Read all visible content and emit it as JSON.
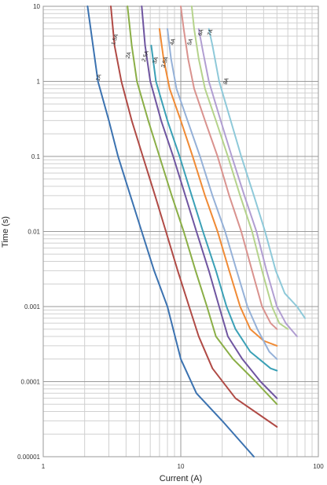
{
  "chart_data": {
    "type": "line",
    "x_scale": "log",
    "y_scale": "log",
    "xlim": [
      1,
      100
    ],
    "ylim": [
      1e-05,
      10
    ],
    "xlabel": "Current (A)",
    "ylabel": "Time (s)",
    "grid": true,
    "legend": "none",
    "x_ticks": [
      {
        "value": 1,
        "label": "1"
      },
      {
        "value": 10,
        "label": "10"
      },
      {
        "value": 100,
        "label": "100"
      }
    ],
    "y_ticks": [
      {
        "value": 10,
        "label": "10"
      },
      {
        "value": 1,
        "label": "1"
      },
      {
        "value": 0.1,
        "label": "0.1"
      },
      {
        "value": 0.01,
        "label": "0.01"
      },
      {
        "value": 0.001,
        "label": "0.001"
      },
      {
        "value": 0.0001,
        "label": "0.0001"
      },
      {
        "value": 1e-05,
        "label": "0.00001"
      }
    ],
    "series": [
      {
        "name": "1A",
        "color": "#3b72b0",
        "points": [
          [
            2.1,
            10
          ],
          [
            2.3,
            3
          ],
          [
            2.5,
            1
          ],
          [
            3,
            0.3
          ],
          [
            3.5,
            0.1
          ],
          [
            4.3,
            0.03
          ],
          [
            5.2,
            0.01
          ],
          [
            6.4,
            0.003
          ],
          [
            8,
            0.001
          ],
          [
            10,
            0.0002
          ],
          [
            13,
            7e-05
          ],
          [
            20,
            3e-05
          ],
          [
            34,
            1e-05
          ]
        ]
      },
      {
        "name": "1.5A",
        "color": "#b04a45",
        "points": [
          [
            3.1,
            10
          ],
          [
            3.3,
            3
          ],
          [
            3.7,
            1
          ],
          [
            4.4,
            0.3
          ],
          [
            5.3,
            0.1
          ],
          [
            6.5,
            0.03
          ],
          [
            7.8,
            0.01
          ],
          [
            9.5,
            0.003
          ],
          [
            11.5,
            0.001
          ],
          [
            13.5,
            0.0004
          ],
          [
            17,
            0.00015
          ],
          [
            25,
            6e-05
          ],
          [
            50,
            2.5e-05
          ]
        ]
      },
      {
        "name": "2A",
        "color": "#8aae46",
        "points": [
          [
            4.1,
            10
          ],
          [
            4.4,
            3
          ],
          [
            4.8,
            1
          ],
          [
            5.8,
            0.3
          ],
          [
            7,
            0.1
          ],
          [
            8.6,
            0.03
          ],
          [
            10.5,
            0.01
          ],
          [
            12.8,
            0.003
          ],
          [
            15.5,
            0.001
          ],
          [
            18,
            0.0004
          ],
          [
            24,
            0.0002
          ],
          [
            35,
            0.0001
          ],
          [
            50,
            5e-05
          ]
        ]
      },
      {
        "name": "2.5A",
        "color": "#6f55a0",
        "points": [
          [
            5.2,
            10
          ],
          [
            5.5,
            3
          ],
          [
            6,
            1
          ],
          [
            7.2,
            0.3
          ],
          [
            8.8,
            0.1
          ],
          [
            10.8,
            0.03
          ],
          [
            13,
            0.01
          ],
          [
            16,
            0.003
          ],
          [
            19,
            0.001
          ],
          [
            22,
            0.0004
          ],
          [
            28,
            0.0002
          ],
          [
            38,
            0.0001
          ],
          [
            50,
            6e-05
          ]
        ]
      },
      {
        "name": "3A",
        "color": "#3aa0b6",
        "points": [
          [
            6.1,
            3
          ],
          [
            6.6,
            1
          ],
          [
            8,
            0.3
          ],
          [
            9.8,
            0.1
          ],
          [
            12,
            0.03
          ],
          [
            14.5,
            0.01
          ],
          [
            18,
            0.003
          ],
          [
            21.5,
            0.001
          ],
          [
            25,
            0.0005
          ],
          [
            32,
            0.00025
          ],
          [
            45,
            0.00015
          ],
          [
            50,
            0.00014
          ]
        ]
      },
      {
        "name": "3.5A",
        "color": "#f08a34",
        "points": [
          [
            7,
            5
          ],
          [
            7.5,
            2
          ],
          [
            8.3,
            0.8
          ],
          [
            10,
            0.3
          ],
          [
            12.2,
            0.1
          ],
          [
            15,
            0.03
          ],
          [
            18.5,
            0.01
          ],
          [
            22.5,
            0.003
          ],
          [
            27,
            0.001
          ],
          [
            32,
            0.0005
          ],
          [
            40,
            0.00035
          ],
          [
            50,
            0.0003
          ]
        ]
      },
      {
        "name": "4A",
        "color": "#95b1d8",
        "points": [
          [
            8,
            5
          ],
          [
            8.5,
            2
          ],
          [
            9.3,
            0.8
          ],
          [
            11.2,
            0.3
          ],
          [
            13.8,
            0.1
          ],
          [
            17,
            0.03
          ],
          [
            21,
            0.01
          ],
          [
            25.5,
            0.003
          ],
          [
            30.5,
            0.001
          ],
          [
            36,
            0.0005
          ],
          [
            44,
            0.00025
          ],
          [
            50,
            0.0002
          ]
        ]
      },
      {
        "name": "5A",
        "color": "#d9928e",
        "points": [
          [
            10,
            10
          ],
          [
            10.5,
            5
          ],
          [
            11.3,
            2
          ],
          [
            12.5,
            0.8
          ],
          [
            15,
            0.3
          ],
          [
            18.5,
            0.1
          ],
          [
            22.5,
            0.03
          ],
          [
            27.5,
            0.01
          ],
          [
            33,
            0.003
          ],
          [
            39,
            0.001
          ],
          [
            45,
            0.0006
          ],
          [
            50,
            0.0005
          ]
        ]
      },
      {
        "name": "6A",
        "color": "#b5d38c",
        "points": [
          [
            12,
            10
          ],
          [
            12.5,
            5
          ],
          [
            13.5,
            2
          ],
          [
            15,
            0.8
          ],
          [
            18,
            0.3
          ],
          [
            22,
            0.1
          ],
          [
            27,
            0.03
          ],
          [
            33,
            0.01
          ],
          [
            39,
            0.003
          ],
          [
            46,
            0.001
          ],
          [
            52,
            0.0006
          ],
          [
            60,
            0.0005
          ]
        ]
      },
      {
        "name": "7A",
        "color": "#b19ed2",
        "points": [
          [
            13.5,
            5
          ],
          [
            14.5,
            2.5
          ],
          [
            16,
            1
          ],
          [
            19,
            0.35
          ],
          [
            23.5,
            0.1
          ],
          [
            29,
            0.03
          ],
          [
            35.5,
            0.01
          ],
          [
            42,
            0.003
          ],
          [
            50,
            0.001
          ],
          [
            58,
            0.0006
          ],
          [
            70,
            0.0004
          ]
        ]
      },
      {
        "name": "8A",
        "color": "#8ec9d9",
        "points": [
          [
            16,
            5
          ],
          [
            17,
            3
          ],
          [
            19,
            1
          ],
          [
            22.5,
            0.35
          ],
          [
            27.5,
            0.1
          ],
          [
            34,
            0.03
          ],
          [
            41,
            0.01
          ],
          [
            49,
            0.003
          ],
          [
            57,
            0.0015
          ],
          [
            70,
            0.001
          ],
          [
            80,
            0.0007
          ]
        ]
      }
    ],
    "curve_labels": [
      {
        "text": "1A",
        "x": 2.55,
        "y": 1.0
      },
      {
        "text": "1.5A",
        "x": 3.3,
        "y": 3.0
      },
      {
        "text": "2A",
        "x": 4.2,
        "y": 2.0
      },
      {
        "text": "2.5A",
        "x": 5.5,
        "y": 1.8
      },
      {
        "text": "3A",
        "x": 6.6,
        "y": 1.7
      },
      {
        "text": "3.5A",
        "x": 7.6,
        "y": 1.5
      },
      {
        "text": "4A",
        "x": 8.8,
        "y": 3.0
      },
      {
        "text": "5A",
        "x": 11.8,
        "y": 3.0
      },
      {
        "text": "6A",
        "x": 14.1,
        "y": 4.0
      },
      {
        "text": "7A",
        "x": 16.5,
        "y": 4.0
      },
      {
        "text": "8A",
        "x": 21.5,
        "y": 0.9
      }
    ]
  }
}
